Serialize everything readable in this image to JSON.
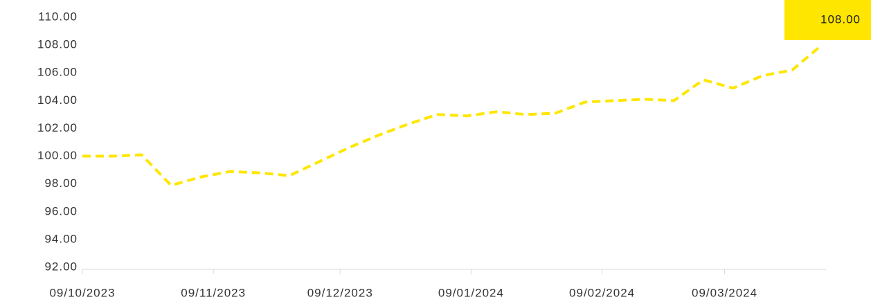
{
  "chart_data": {
    "type": "line",
    "x": [
      "09/10/2023",
      "16/10/2023",
      "23/10/2023",
      "30/10/2023",
      "06/11/2023",
      "13/11/2023",
      "20/11/2023",
      "27/11/2023",
      "04/12/2023",
      "11/12/2023",
      "18/12/2023",
      "25/12/2023",
      "01/01/2024",
      "08/01/2024",
      "15/01/2024",
      "22/01/2024",
      "29/01/2024",
      "05/02/2024",
      "12/02/2024",
      "19/02/2024",
      "26/02/2024",
      "04/03/2024",
      "11/03/2024",
      "18/03/2024",
      "25/03/2024",
      "01/04/2024"
    ],
    "values": [
      100.0,
      100.0,
      100.1,
      97.9,
      98.5,
      98.9,
      98.8,
      98.6,
      99.6,
      100.6,
      101.5,
      102.3,
      103.0,
      102.9,
      103.2,
      103.0,
      103.1,
      103.9,
      104.0,
      104.1,
      104.0,
      105.5,
      104.9,
      105.8,
      106.2,
      108.0
    ],
    "value_labels": [
      null,
      null,
      null,
      null,
      null,
      null,
      null,
      null,
      null,
      null,
      null,
      null,
      null,
      null,
      null,
      null,
      null,
      null,
      null,
      null,
      null,
      null,
      null,
      null,
      null,
      "108.00"
    ],
    "color": "#ffe600",
    "xlim": [
      "09/10/2023",
      "02/04/2024"
    ],
    "xticks": [
      "09/10/2023",
      "09/11/2023",
      "09/12/2023",
      "09/01/2024",
      "09/02/2024",
      "09/03/2024"
    ],
    "ylim": [
      92,
      110
    ],
    "yticks": [
      {
        "value": 92,
        "label": "92.00"
      },
      {
        "value": 94,
        "label": "94.00"
      },
      {
        "value": 96,
        "label": "96.00"
      },
      {
        "value": 98,
        "label": "98.00"
      },
      {
        "value": 100,
        "label": "100.00"
      },
      {
        "value": 102,
        "label": "102.00"
      },
      {
        "value": 104,
        "label": "104.00"
      },
      {
        "value": 106,
        "label": "106.00"
      },
      {
        "value": 108,
        "label": "108.00"
      },
      {
        "value": 110,
        "label": "110.00"
      }
    ],
    "grid": false
  }
}
